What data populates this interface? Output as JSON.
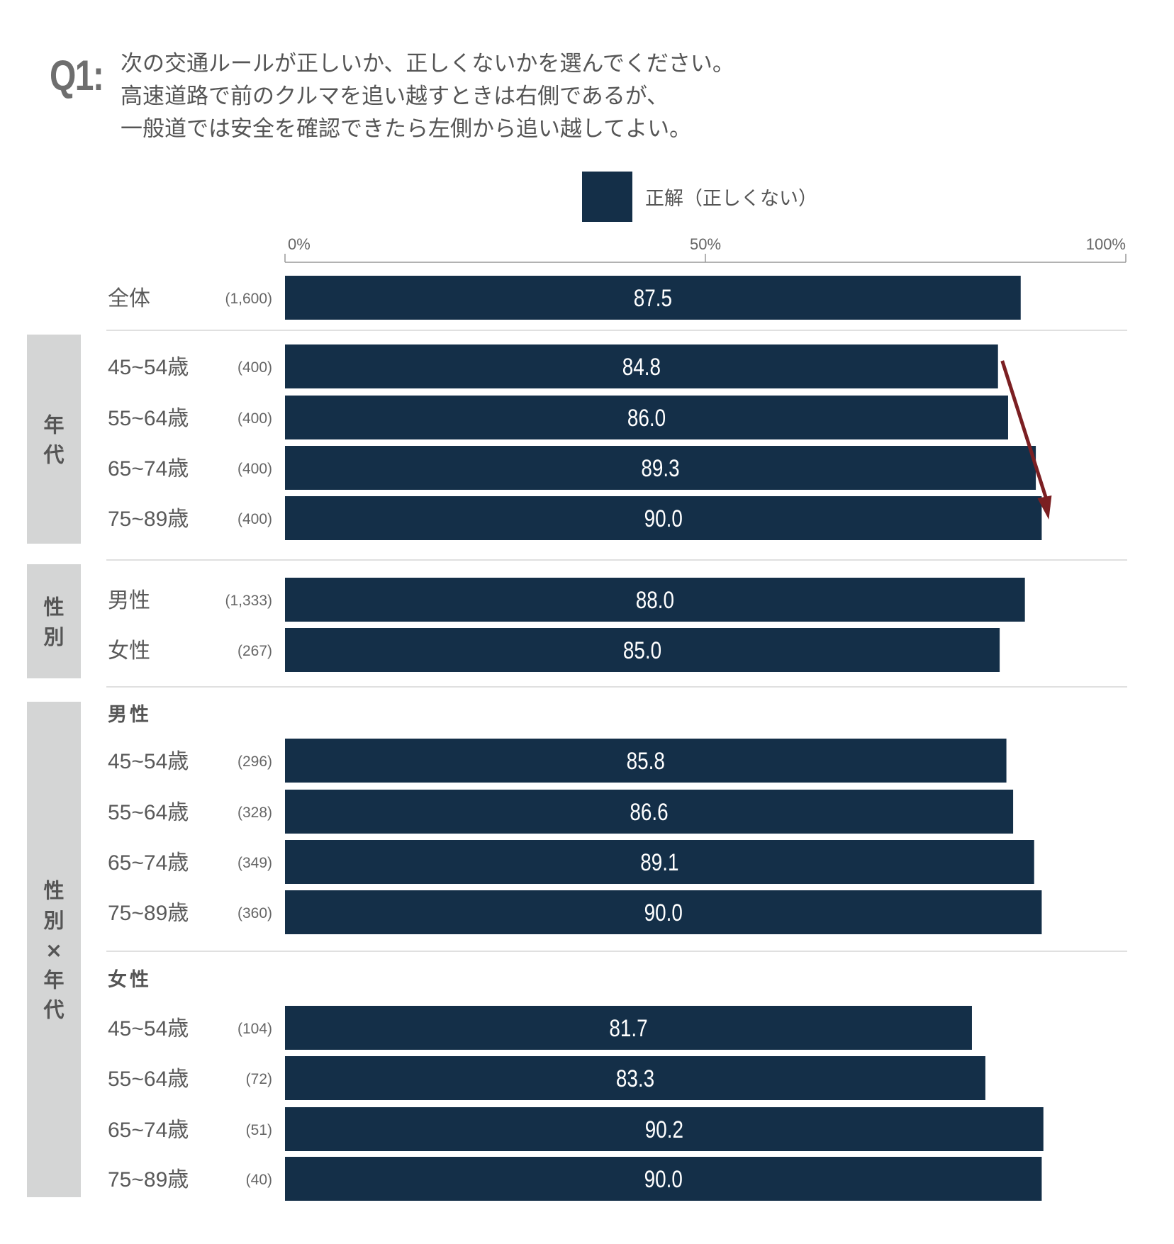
{
  "question": {
    "label": "Q1:",
    "lines": [
      "次の交通ルールが正しいか、正しくないかを選んでください。",
      "高速道路で前のクルマを追い越すときは右側であるが、",
      "一般道では安全を確認できたら左側から追い越してよい。"
    ]
  },
  "colors": {
    "bar": "#142f48",
    "group_tab": "#d4d5d5",
    "arrow": "#7b1f22",
    "text": "#555555",
    "axis": "#999999"
  },
  "legend": {
    "label": "正解（正しくない）"
  },
  "chart_data": {
    "type": "bar",
    "orientation": "horizontal",
    "xlim": [
      0,
      100
    ],
    "ticks": [
      "0%",
      "50%",
      "100%"
    ],
    "series": [
      {
        "name": "正解（正しくない）"
      }
    ],
    "rows": [
      {
        "label": "全体",
        "n": "(1,600)",
        "value": 87.5,
        "value_label": "87.5"
      },
      {
        "label": "45~54歳",
        "n": "(400)",
        "value": 84.8,
        "value_label": "84.8"
      },
      {
        "label": "55~64歳",
        "n": "(400)",
        "value": 86.0,
        "value_label": "86.0"
      },
      {
        "label": "65~74歳",
        "n": "(400)",
        "value": 89.3,
        "value_label": "89.3"
      },
      {
        "label": "75~89歳",
        "n": "(400)",
        "value": 90.0,
        "value_label": "90.0"
      },
      {
        "label": "男性",
        "n": "(1,333)",
        "value": 88.0,
        "value_label": "88.0"
      },
      {
        "label": "女性",
        "n": "(267)",
        "value": 85.0,
        "value_label": "85.0"
      },
      {
        "label": "45~54歳",
        "n": "(296)",
        "value": 85.8,
        "value_label": "85.8"
      },
      {
        "label": "55~64歳",
        "n": "(328)",
        "value": 86.6,
        "value_label": "86.6"
      },
      {
        "label": "65~74歳",
        "n": "(349)",
        "value": 89.1,
        "value_label": "89.1"
      },
      {
        "label": "75~89歳",
        "n": "(360)",
        "value": 90.0,
        "value_label": "90.0"
      },
      {
        "label": "45~54歳",
        "n": "(104)",
        "value": 81.7,
        "value_label": "81.7"
      },
      {
        "label": "55~64歳",
        "n": "(72)",
        "value": 83.3,
        "value_label": "83.3"
      },
      {
        "label": "65~74歳",
        "n": "(51)",
        "value": 90.2,
        "value_label": "90.2"
      },
      {
        "label": "75~89歳",
        "n": "(40)",
        "value": 90.0,
        "value_label": "90.0"
      }
    ],
    "subheaders": [
      "男性",
      "女性"
    ],
    "groups": [
      "年代",
      "性別",
      "性別×年代"
    ]
  }
}
